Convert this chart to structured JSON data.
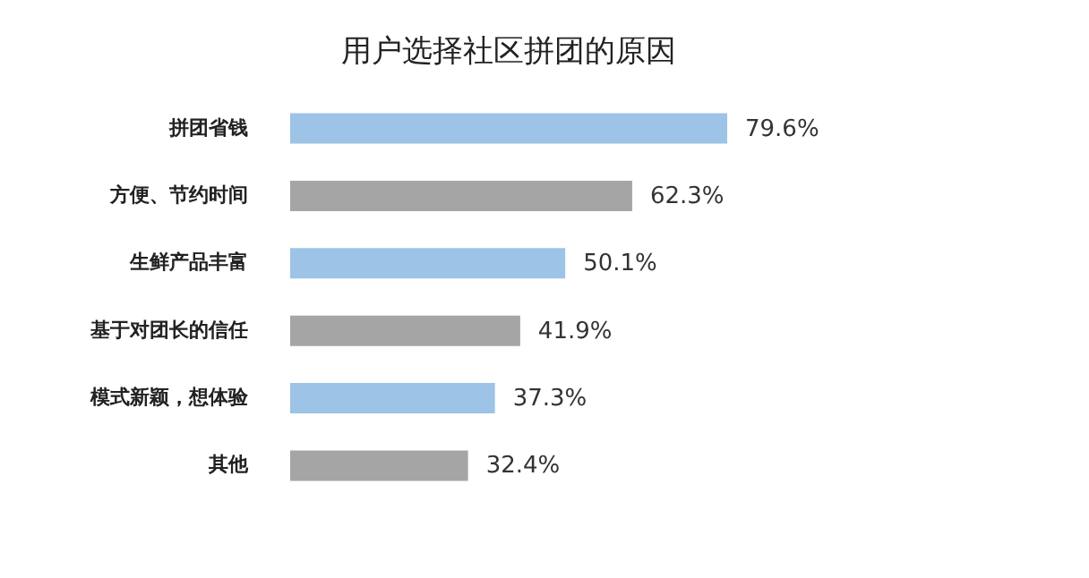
{
  "chart_data": {
    "type": "bar",
    "orientation": "horizontal",
    "title": "用户选择社区拼团的原因",
    "categories": [
      "拼团省钱",
      "方便、节约时间",
      "生鲜产品丰富",
      "基于对团长的信任",
      "模式新颖，想体验",
      "其他"
    ],
    "values": [
      79.6,
      62.3,
      50.1,
      41.9,
      37.3,
      32.4
    ],
    "colors": [
      "#9dc3e6",
      "#a5a5a5",
      "#9dc3e6",
      "#a5a5a5",
      "#9dc3e6",
      "#a5a5a5"
    ],
    "value_labels": [
      "79.6%",
      "62.3%",
      "50.1%",
      "41.9%",
      "37.3%",
      "32.4%"
    ]
  }
}
